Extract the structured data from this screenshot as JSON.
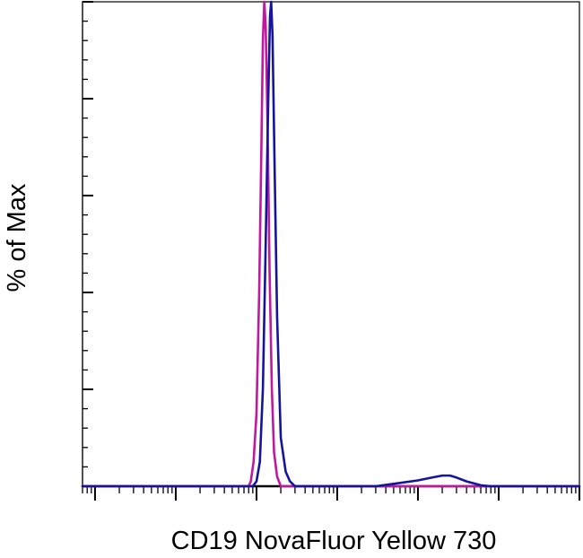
{
  "chart_data": {
    "type": "line",
    "title": "",
    "xlabel": "CD19 NovaFluor Yellow 730",
    "ylabel": "% of Max",
    "x_scale": "log",
    "xlim": [
      0.7,
      1000000
    ],
    "ylim": [
      0,
      100
    ],
    "x_ticks": [
      1,
      10,
      100,
      1000,
      10000,
      100000,
      1000000
    ],
    "x_tick_labels": [],
    "y_ticks": [
      0,
      20,
      40,
      60,
      80,
      100
    ],
    "y_tick_labels": [],
    "grid": false,
    "legend": "none",
    "series": [
      {
        "color": "#c0189f",
        "points": [
          [
            0.7,
            0
          ],
          [
            80,
            0
          ],
          [
            85,
            1
          ],
          [
            92,
            5
          ],
          [
            100,
            15
          ],
          [
            108,
            40
          ],
          [
            115,
            70
          ],
          [
            120,
            92
          ],
          [
            125,
            100
          ],
          [
            130,
            95
          ],
          [
            137,
            75
          ],
          [
            145,
            45
          ],
          [
            155,
            20
          ],
          [
            165,
            7
          ],
          [
            180,
            2
          ],
          [
            200,
            0
          ],
          [
            1000000,
            0
          ]
        ]
      },
      {
        "color": "#14149c",
        "points": [
          [
            0.7,
            0
          ],
          [
            90,
            0
          ],
          [
            100,
            1
          ],
          [
            110,
            5
          ],
          [
            120,
            20
          ],
          [
            130,
            50
          ],
          [
            140,
            80
          ],
          [
            147,
            97
          ],
          [
            152,
            100
          ],
          [
            158,
            93
          ],
          [
            168,
            65
          ],
          [
            180,
            35
          ],
          [
            200,
            10
          ],
          [
            230,
            3
          ],
          [
            260,
            1
          ],
          [
            300,
            0
          ],
          [
            3000,
            0
          ],
          [
            5000,
            0.5
          ],
          [
            10000,
            1.2
          ],
          [
            15000,
            1.8
          ],
          [
            20000,
            2.2
          ],
          [
            25000,
            2.2
          ],
          [
            30000,
            1.8
          ],
          [
            40000,
            1.0
          ],
          [
            60000,
            0.2
          ],
          [
            80000,
            0
          ],
          [
            1000000,
            0
          ]
        ]
      }
    ]
  }
}
